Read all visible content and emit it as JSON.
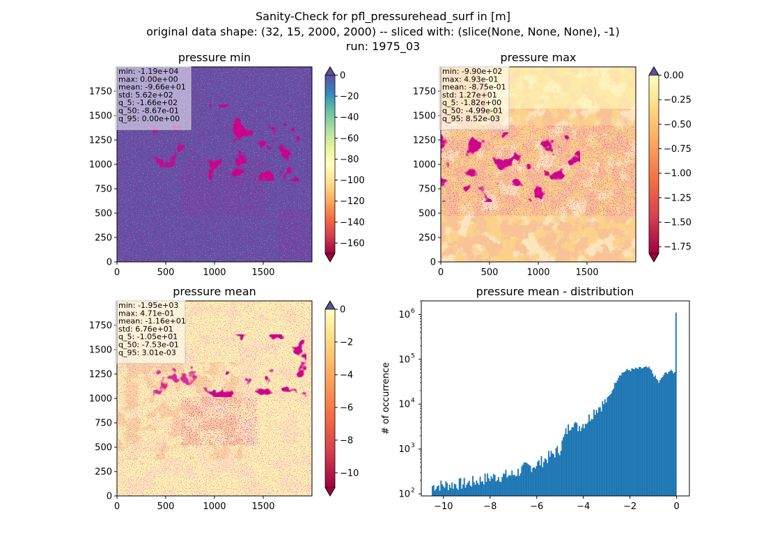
{
  "suptitle": [
    "Sanity-Check for pfl_pressurehead_surf in [m]",
    "original data shape: (32, 15, 2000, 2000) -- sliced with: (slice(None, None, None), -1)",
    "run: 1975_03"
  ],
  "colors": {
    "spectral": [
      "#9e0142",
      "#d53e4f",
      "#f46d43",
      "#fdae61",
      "#fee08b",
      "#ffffbf",
      "#e6f598",
      "#abdda4",
      "#66c2a5",
      "#3288bd",
      "#5e4fa2"
    ],
    "hist_bar": "#1f77b4"
  },
  "chart_data": [
    {
      "type": "heatmap",
      "title": "pressure min",
      "x_ticks": [
        "0",
        "500",
        "1000",
        "1500"
      ],
      "y_ticks": [
        "0",
        "250",
        "500",
        "750",
        "1000",
        "1250",
        "1500",
        "1750"
      ],
      "xlim": [
        0,
        2000
      ],
      "ylim": [
        0,
        2000
      ],
      "colorbar": {
        "min": -170,
        "max": 0,
        "ticks": [
          "0",
          "−20",
          "−40",
          "−60",
          "−80",
          "−100",
          "−120",
          "−140",
          "−160"
        ],
        "tick_values": [
          0,
          -20,
          -40,
          -60,
          -80,
          -100,
          -120,
          -140,
          -160
        ],
        "extend": "both",
        "cmap": "Spectral"
      },
      "stats": [
        "min: -1.19e+04",
        "max: 0.00e+00",
        "mean: -9.66e+01",
        "std: 5.62e+02",
        "q_5: -1.66e+02",
        "q_50: -8.67e-01",
        "q_95: 0.00e+00"
      ]
    },
    {
      "type": "heatmap",
      "title": "pressure max",
      "x_ticks": [
        "0",
        "500",
        "1000",
        "1500"
      ],
      "y_ticks": [
        "0",
        "250",
        "500",
        "750",
        "1000",
        "1250",
        "1500",
        "1750"
      ],
      "xlim": [
        0,
        2000
      ],
      "ylim": [
        0,
        2000
      ],
      "colorbar": {
        "min": -1.82,
        "max": 0,
        "ticks": [
          "0.00",
          "−0.25",
          "−0.50",
          "−0.75",
          "−1.00",
          "−1.25",
          "−1.50",
          "−1.75"
        ],
        "tick_values": [
          0,
          -0.25,
          -0.5,
          -0.75,
          -1.0,
          -1.25,
          -1.5,
          -1.75
        ],
        "extend": "both",
        "cmap": "Spectral"
      },
      "stats": [
        "min: -9.90e+02",
        "max: 4.93e-01",
        "mean: -8.75e-01",
        "std: 1.27e+01",
        "q_5: -1.82e+00",
        "q_50: -4.99e-01",
        "q_95: 8.52e-03"
      ]
    },
    {
      "type": "heatmap",
      "title": "pressure mean",
      "x_ticks": [
        "0",
        "500",
        "1000",
        "1500"
      ],
      "y_ticks": [
        "0",
        "250",
        "500",
        "750",
        "1000",
        "1250",
        "1500",
        "1750"
      ],
      "xlim": [
        0,
        2000
      ],
      "ylim": [
        0,
        2000
      ],
      "colorbar": {
        "min": -10.9,
        "max": 0,
        "ticks": [
          "0",
          "−2",
          "−4",
          "−6",
          "−8",
          "−10"
        ],
        "tick_values": [
          0,
          -2,
          -4,
          -6,
          -8,
          -10
        ],
        "extend": "both",
        "cmap": "Spectral"
      },
      "stats": [
        "min: -1.95e+03",
        "max: 4.71e-01",
        "mean: -1.16e+01",
        "std: 6.76e+01",
        "q_5: -1.05e+01",
        "q_50: -7.53e-01",
        "q_95: 3.01e-03"
      ]
    },
    {
      "type": "bar",
      "title": "pressure mean - distribution",
      "ylabel": "# of occurrence",
      "xlabel": "",
      "yscale": "log",
      "xlim": [
        -10.95,
        0.55
      ],
      "ylim": [
        90,
        2000000
      ],
      "x_ticks": [
        "−10",
        "−8",
        "−6",
        "−4",
        "−2",
        "0"
      ],
      "x_tick_values": [
        -10,
        -8,
        -6,
        -4,
        -2,
        0
      ],
      "y_ticks": [
        {
          "base": "10",
          "exp": "2"
        },
        {
          "base": "10",
          "exp": "3"
        },
        {
          "base": "10",
          "exp": "4"
        },
        {
          "base": "10",
          "exp": "5"
        },
        {
          "base": "10",
          "exp": "6"
        }
      ],
      "y_tick_values": [
        100,
        1000,
        10000,
        100000,
        1000000
      ],
      "bins": {
        "start": -10.5,
        "end": 0.0,
        "count": 200
      },
      "anchors": [
        [
          -10.5,
          150
        ],
        [
          -9,
          170
        ],
        [
          -8,
          230
        ],
        [
          -7,
          270
        ],
        [
          -6.5,
          380
        ],
        [
          -6,
          450
        ],
        [
          -5.5,
          650
        ],
        [
          -5,
          1000
        ],
        [
          -4.75,
          2300
        ],
        [
          -4.45,
          4300
        ],
        [
          -4.3,
          3000
        ],
        [
          -4.05,
          3500
        ],
        [
          -3.8,
          4500
        ],
        [
          -3.5,
          7500
        ],
        [
          -3.1,
          10500
        ],
        [
          -2.85,
          16000
        ],
        [
          -2.6,
          32000
        ],
        [
          -2.45,
          45000
        ],
        [
          -2.2,
          55000
        ],
        [
          -2.0,
          58000
        ],
        [
          -1.6,
          62000
        ],
        [
          -1.35,
          65000
        ],
        [
          -1.15,
          62000
        ],
        [
          -0.95,
          42000
        ],
        [
          -0.75,
          30000
        ],
        [
          -0.55,
          45000
        ],
        [
          -0.3,
          55000
        ],
        [
          -0.05,
          50000
        ]
      ],
      "last_bin_value": 1100000
    }
  ]
}
